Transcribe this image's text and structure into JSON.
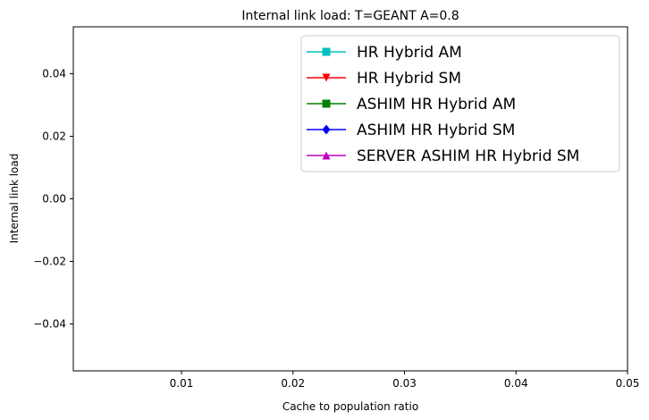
{
  "chart_data": {
    "type": "line",
    "title": "Internal link load: T=GEANT A=0.8",
    "xlabel": "Cache to population ratio",
    "ylabel": "Internal link load",
    "xlim": [
      0.0003,
      0.05
    ],
    "ylim": [
      -0.055,
      0.055
    ],
    "xticks": [
      0.01,
      0.02,
      0.03,
      0.04,
      0.05
    ],
    "xtick_labels": [
      "0.01",
      "0.02",
      "0.03",
      "0.04",
      "0.05"
    ],
    "yticks": [
      0.04,
      0.02,
      0.0,
      -0.02,
      -0.04
    ],
    "ytick_labels": [
      "0.04",
      "0.02",
      "0.00",
      "−0.02",
      "−0.04"
    ],
    "grid": false,
    "legend_position": "top-right",
    "series": [
      {
        "name": "HR Hybrid AM",
        "color": "#00bfbf",
        "marker": "square",
        "x": [],
        "y": []
      },
      {
        "name": "HR Hybrid SM",
        "color": "#ff0000",
        "marker": "triangle-down",
        "x": [],
        "y": []
      },
      {
        "name": "ASHIM HR Hybrid AM",
        "color": "#008000",
        "marker": "square",
        "x": [],
        "y": []
      },
      {
        "name": "ASHIM HR Hybrid SM",
        "color": "#0000ff",
        "marker": "diamond",
        "x": [],
        "y": []
      },
      {
        "name": "SERVER ASHIM HR Hybrid SM",
        "color": "#bf00bf",
        "marker": "triangle-up",
        "x": [],
        "y": []
      }
    ]
  }
}
